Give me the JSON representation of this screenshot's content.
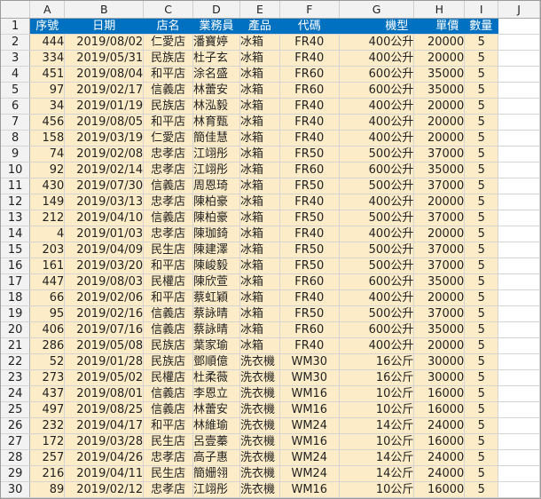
{
  "columns": [
    "",
    "A",
    "B",
    "C",
    "D",
    "E",
    "F",
    "G",
    "H",
    "I",
    "J"
  ],
  "headers": [
    "序號",
    "日期",
    "店名",
    "業務員",
    "產品",
    "代碼",
    "機型",
    "單價",
    "數量"
  ],
  "rows": [
    [
      "444",
      "2019/08/02",
      "仁愛店",
      "潘寶婷",
      "冰箱",
      "FR40",
      "400公升",
      "20000",
      "5"
    ],
    [
      "334",
      "2019/05/31",
      "民族店",
      "杜子玄",
      "冰箱",
      "FR40",
      "400公升",
      "20000",
      "5"
    ],
    [
      "451",
      "2019/08/04",
      "和平店",
      "涂名盛",
      "冰箱",
      "FR60",
      "600公升",
      "35000",
      "5"
    ],
    [
      "97",
      "2019/02/17",
      "信義店",
      "林蕾安",
      "冰箱",
      "FR60",
      "600公升",
      "35000",
      "5"
    ],
    [
      "34",
      "2019/01/19",
      "民族店",
      "林泓毅",
      "冰箱",
      "FR40",
      "400公升",
      "20000",
      "5"
    ],
    [
      "456",
      "2019/08/05",
      "和平店",
      "林育甄",
      "冰箱",
      "FR40",
      "400公升",
      "20000",
      "5"
    ],
    [
      "158",
      "2019/03/19",
      "仁愛店",
      "簡佳慧",
      "冰箱",
      "FR40",
      "400公升",
      "20000",
      "5"
    ],
    [
      "74",
      "2019/02/08",
      "忠孝店",
      "江翊彤",
      "冰箱",
      "FR50",
      "500公升",
      "37000",
      "5"
    ],
    [
      "92",
      "2019/02/14",
      "忠孝店",
      "江翊彤",
      "冰箱",
      "FR60",
      "600公升",
      "35000",
      "5"
    ],
    [
      "430",
      "2019/07/30",
      "信義店",
      "周恩琦",
      "冰箱",
      "FR50",
      "500公升",
      "37000",
      "5"
    ],
    [
      "149",
      "2019/03/13",
      "忠孝店",
      "陳柏豪",
      "冰箱",
      "FR40",
      "400公升",
      "20000",
      "5"
    ],
    [
      "212",
      "2019/04/10",
      "信義店",
      "陳柏豪",
      "冰箱",
      "FR50",
      "500公升",
      "37000",
      "5"
    ],
    [
      "4",
      "2019/01/03",
      "忠孝店",
      "陳珈錡",
      "冰箱",
      "FR40",
      "400公升",
      "20000",
      "5"
    ],
    [
      "203",
      "2019/04/09",
      "民生店",
      "陳建澤",
      "冰箱",
      "FR50",
      "500公升",
      "37000",
      "5"
    ],
    [
      "161",
      "2019/03/20",
      "和平店",
      "陳峻毅",
      "冰箱",
      "FR50",
      "500公升",
      "37000",
      "5"
    ],
    [
      "447",
      "2019/08/03",
      "民權店",
      "陳欣萱",
      "冰箱",
      "FR60",
      "600公升",
      "35000",
      "5"
    ],
    [
      "66",
      "2019/02/06",
      "和平店",
      "蔡虹穎",
      "冰箱",
      "FR40",
      "400公升",
      "20000",
      "5"
    ],
    [
      "95",
      "2019/02/16",
      "信義店",
      "蔡詠晴",
      "冰箱",
      "FR50",
      "500公升",
      "37000",
      "5"
    ],
    [
      "406",
      "2019/07/16",
      "信義店",
      "蔡詠晴",
      "冰箱",
      "FR60",
      "600公升",
      "35000",
      "5"
    ],
    [
      "286",
      "2019/05/08",
      "民族店",
      "葉家瑜",
      "冰箱",
      "FR40",
      "400公升",
      "20000",
      "5"
    ],
    [
      "52",
      "2019/01/28",
      "民族店",
      "鄧順億",
      "洗衣機",
      "WM30",
      "16公斤",
      "30000",
      "5"
    ],
    [
      "273",
      "2019/05/02",
      "民權店",
      "杜柔薇",
      "洗衣機",
      "WM30",
      "16公斤",
      "30000",
      "5"
    ],
    [
      "437",
      "2019/08/01",
      "信義店",
      "李恩立",
      "洗衣機",
      "WM16",
      "10公斤",
      "16000",
      "5"
    ],
    [
      "497",
      "2019/08/25",
      "信義店",
      "林蕾安",
      "洗衣機",
      "WM16",
      "10公斤",
      "16000",
      "5"
    ],
    [
      "232",
      "2019/04/17",
      "和平店",
      "林維瑜",
      "洗衣機",
      "WM24",
      "14公斤",
      "24000",
      "5"
    ],
    [
      "172",
      "2019/03/28",
      "民生店",
      "呂壹蓁",
      "洗衣機",
      "WM16",
      "10公斤",
      "16000",
      "5"
    ],
    [
      "257",
      "2019/04/26",
      "忠孝店",
      "高子惠",
      "洗衣機",
      "WM24",
      "14公斤",
      "24000",
      "5"
    ],
    [
      "216",
      "2019/04/11",
      "民生店",
      "簡姗翎",
      "洗衣機",
      "WM24",
      "14公斤",
      "24000",
      "5"
    ],
    [
      "89",
      "2019/02/12",
      "忠孝店",
      "江翊彤",
      "洗衣機",
      "WM16",
      "10公斤",
      "16000",
      "5"
    ]
  ]
}
